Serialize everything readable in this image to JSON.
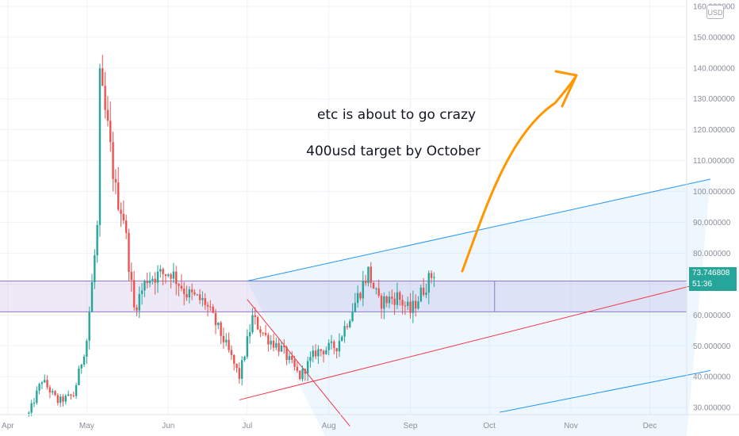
{
  "chart_data": {
    "type": "candlestick",
    "instrument": "ETC",
    "currency": "USD",
    "y_axis": {
      "ticks": [
        "30.000000",
        "40.000000",
        "50.000000",
        "60.000000",
        "70.000000",
        "80.000000",
        "90.000000",
        "100.000000",
        "110.000000",
        "120.000000",
        "130.000000",
        "140.000000",
        "150.000000",
        "160.000000"
      ],
      "range": [
        28.5,
        161
      ]
    },
    "x_axis": {
      "ticks": [
        "Apr",
        "May",
        "Jun",
        "Jul",
        "Aug",
        "Sep",
        "Oct",
        "Nov",
        "Dec"
      ],
      "range": [
        "2021-03-20",
        "2021-12-15"
      ]
    },
    "last_price": "73.746808",
    "countdown": "51:36",
    "annotations": [
      "etc is about to go crazy",
      "400usd target by October"
    ],
    "ohlc_keypoints": [
      {
        "date": "2021-04-09",
        "close": 28
      },
      {
        "date": "2021-04-14",
        "close": 39
      },
      {
        "date": "2021-04-20",
        "close": 32
      },
      {
        "date": "2021-04-26",
        "close": 34
      },
      {
        "date": "2021-05-01",
        "close": 52
      },
      {
        "date": "2021-05-05",
        "close": 88
      },
      {
        "date": "2021-05-06",
        "close": 135
      },
      {
        "date": "2021-05-09",
        "close": 120
      },
      {
        "date": "2021-05-12",
        "close": 100
      },
      {
        "date": "2021-05-15",
        "close": 92
      },
      {
        "date": "2021-05-19",
        "close": 62
      },
      {
        "date": "2021-05-24",
        "close": 72
      },
      {
        "date": "2021-06-02",
        "close": 74
      },
      {
        "date": "2021-06-08",
        "close": 67
      },
      {
        "date": "2021-06-15",
        "close": 64
      },
      {
        "date": "2021-06-22",
        "close": 52
      },
      {
        "date": "2021-06-28",
        "close": 40
      },
      {
        "date": "2021-07-03",
        "close": 59
      },
      {
        "date": "2021-07-08",
        "close": 53
      },
      {
        "date": "2021-07-14",
        "close": 49
      },
      {
        "date": "2021-07-21",
        "close": 40
      },
      {
        "date": "2021-07-27",
        "close": 48
      },
      {
        "date": "2021-08-04",
        "close": 50
      },
      {
        "date": "2021-08-12",
        "close": 66
      },
      {
        "date": "2021-08-16",
        "close": 74
      },
      {
        "date": "2021-08-20",
        "close": 64
      },
      {
        "date": "2021-08-27",
        "close": 66
      },
      {
        "date": "2021-09-01",
        "close": 61
      },
      {
        "date": "2021-09-07",
        "close": 70
      },
      {
        "date": "2021-09-10",
        "close": 74
      }
    ],
    "drawings": {
      "horizontal_zone": {
        "low": 61,
        "high": 71
      },
      "parallel_channel": {
        "color": "#2196f3"
      },
      "red_trendline": {
        "color": "#f23645"
      },
      "target_arrow": {
        "color": "#ff9800"
      }
    },
    "colors": {
      "up": "#26a69a",
      "down": "#ef5350",
      "grid": "#f0f3fa",
      "axis_text": "#8a8e99"
    }
  }
}
